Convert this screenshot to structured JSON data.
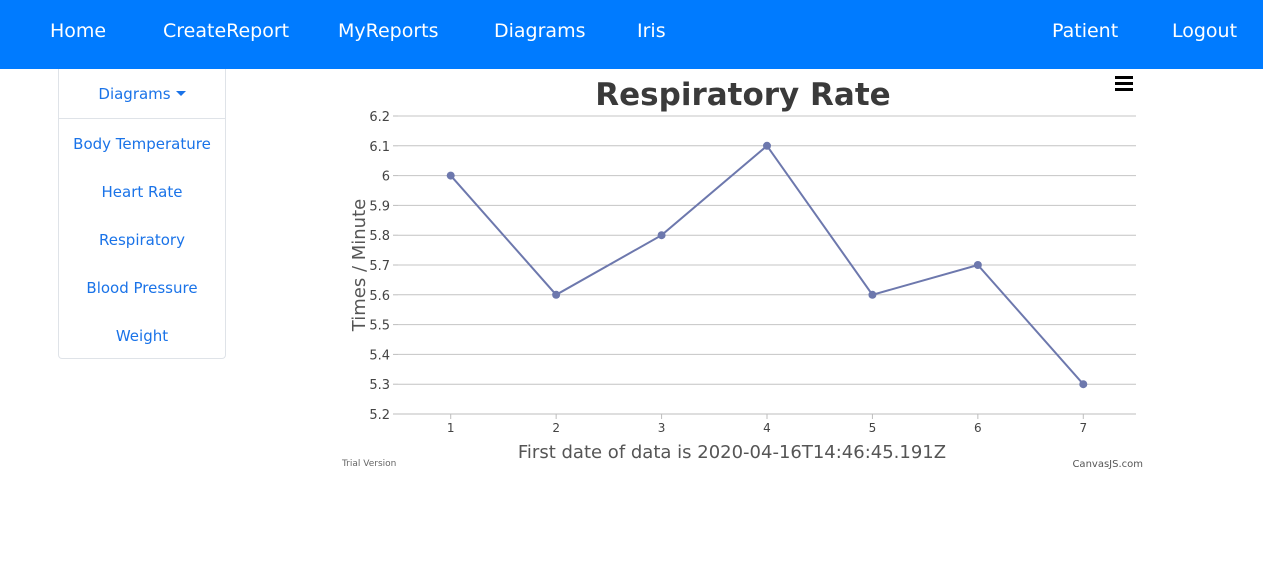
{
  "navbar": {
    "left_items": [
      "Home",
      "CreateReport",
      "MyReports",
      "Diagrams",
      "Iris"
    ],
    "right_items": [
      "Patient",
      "Logout"
    ],
    "background": "#007bff"
  },
  "sidebar": {
    "dropdown_label": "Diagrams",
    "items": [
      "Body Temperature",
      "Heart Rate",
      "Respiratory",
      "Blood Pressure",
      "Weight"
    ],
    "link_color": "#1a73e8"
  },
  "chart_menu_icon": "hamburger-menu-icon",
  "chart_data": {
    "type": "line",
    "title": "Respiratory Rate",
    "xlabel": "First date of data is 2020-04-16T14:46:45.191Z",
    "ylabel": "Times / Minute",
    "x": [
      1,
      2,
      3,
      4,
      5,
      6,
      7
    ],
    "values": [
      6.0,
      5.6,
      5.8,
      6.1,
      5.6,
      5.7,
      5.3
    ],
    "ylim": [
      5.2,
      6.2
    ],
    "y_ticks": [
      "5.2",
      "5.3",
      "5.4",
      "5.5",
      "5.6",
      "5.7",
      "5.8",
      "5.9",
      "6",
      "6.1",
      "6.2"
    ],
    "x_ticks": [
      "1",
      "2",
      "3",
      "4",
      "5",
      "6",
      "7"
    ],
    "grid": true,
    "line_color": "#6d78ad",
    "watermark_left": "Trial Version",
    "watermark_right": "CanvasJS.com"
  }
}
